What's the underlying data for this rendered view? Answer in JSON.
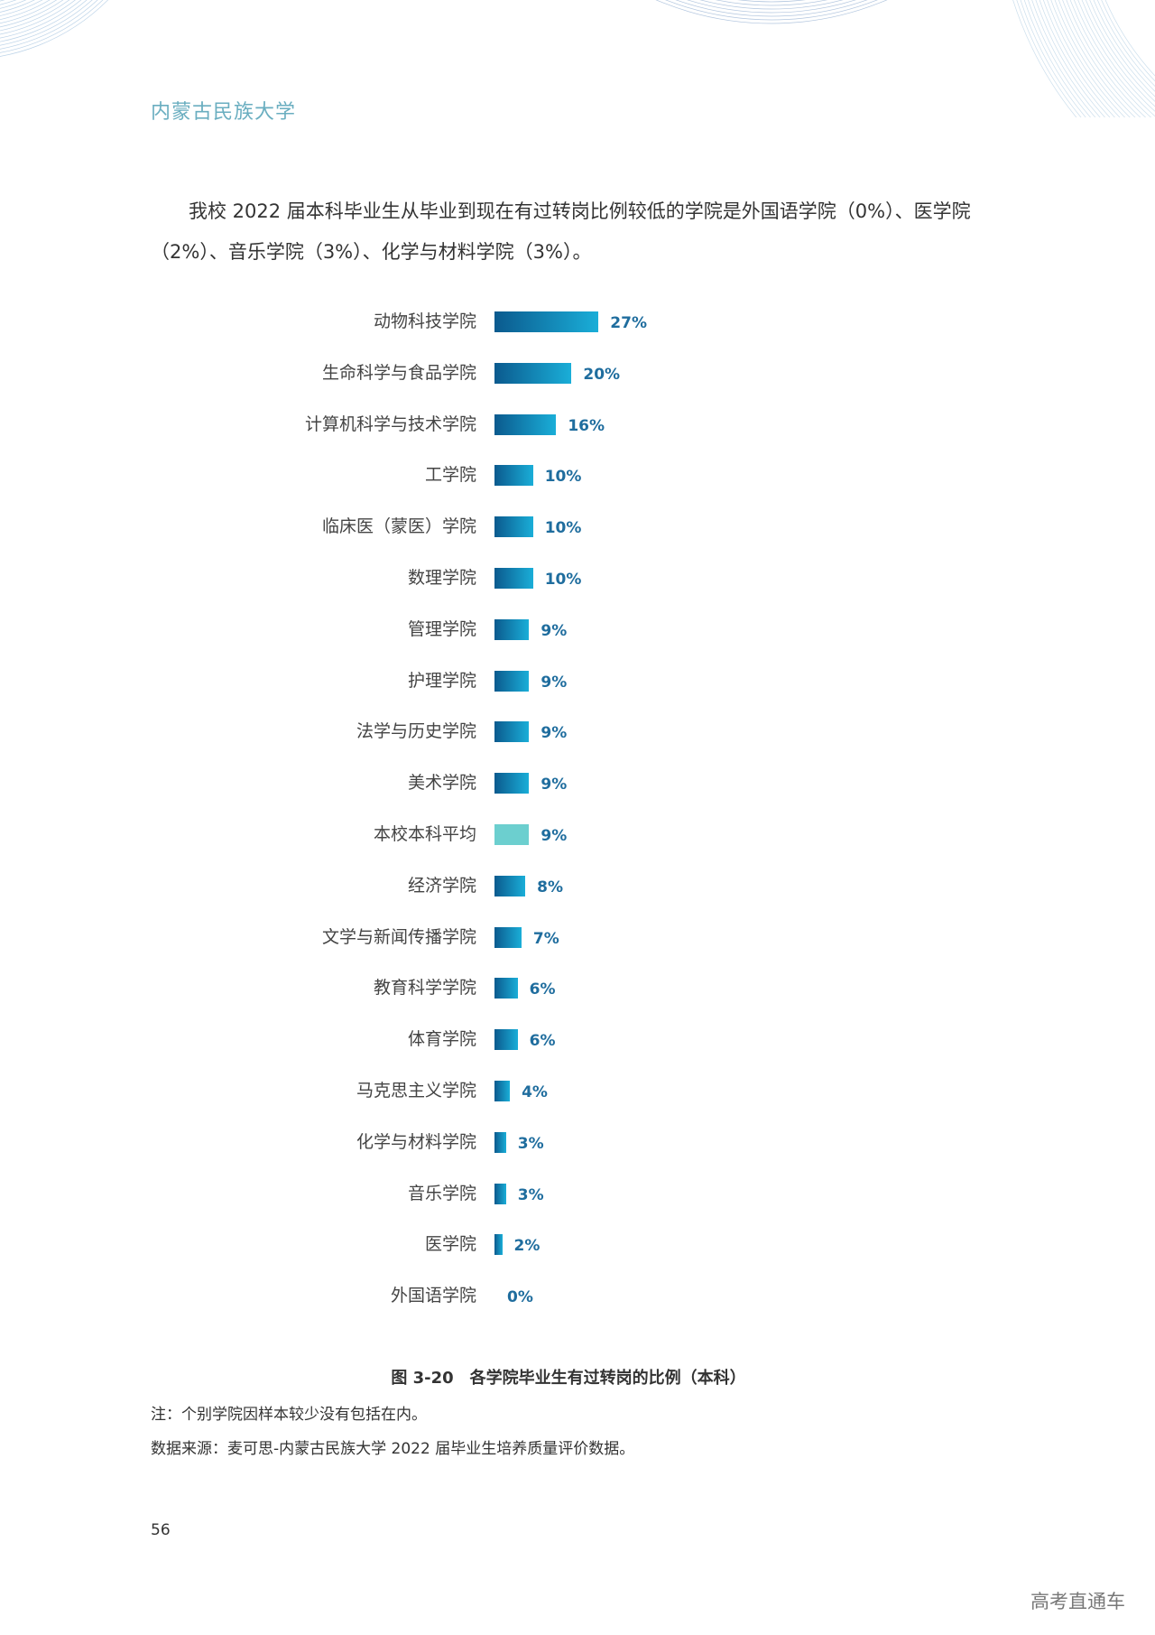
{
  "header": {
    "university": "内蒙古民族大学"
  },
  "paragraph": "我校 2022 届本科毕业生从毕业到现在有过转岗比例较低的学院是外国语学院（0%）、医学院（2%）、音乐学院（3%）、化学与材料学院（3%）。",
  "colors": {
    "bar_gradient_start": "#0b5a8e",
    "bar_gradient_end": "#1aaed8",
    "average_bar": "#6ccfcf",
    "value_label": "#1f6d9e",
    "header_text": "#6aaec0"
  },
  "chart_data": {
    "type": "bar",
    "orientation": "horizontal",
    "title": "图 3-20　各学院毕业生有过转岗的比例（本科）",
    "categories": [
      "动物科技学院",
      "生命科学与食品学院",
      "计算机科学与技术学院",
      "工学院",
      "临床医（蒙医）学院",
      "数理学院",
      "管理学院",
      "护理学院",
      "法学与历史学院",
      "美术学院",
      "本校本科平均",
      "经济学院",
      "文学与新闻传播学院",
      "教育科学学院",
      "体育学院",
      "马克思主义学院",
      "化学与材料学院",
      "音乐学院",
      "医学院",
      "外国语学院"
    ],
    "values": [
      27,
      20,
      16,
      10,
      10,
      10,
      9,
      9,
      9,
      9,
      9,
      8,
      7,
      6,
      6,
      4,
      3,
      3,
      2,
      0
    ],
    "labels": [
      "27%",
      "20%",
      "16%",
      "10%",
      "10%",
      "10%",
      "9%",
      "9%",
      "9%",
      "9%",
      "9%",
      "8%",
      "7%",
      "6%",
      "6%",
      "4%",
      "3%",
      "3%",
      "2%",
      "0%"
    ],
    "highlight": "本校本科平均",
    "unit": "%",
    "grid": false
  },
  "notes": {
    "note": "注：个别学院因样本较少没有包括在内。",
    "source": "数据来源：麦可思-内蒙古民族大学 2022 届毕业生培养质量评价数据。"
  },
  "page_number": "56",
  "watermark": "高考直通车"
}
